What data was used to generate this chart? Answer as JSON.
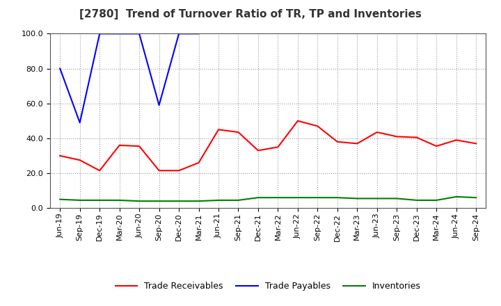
{
  "title": "[2780]  Trend of Turnover Ratio of TR, TP and Inventories",
  "ylim": [
    0.0,
    100.0
  ],
  "yticks": [
    0.0,
    20.0,
    40.0,
    60.0,
    80.0,
    100.0
  ],
  "x_labels": [
    "Jun-19",
    "Sep-19",
    "Dec-19",
    "Mar-20",
    "Jun-20",
    "Sep-20",
    "Dec-20",
    "Mar-21",
    "Jun-21",
    "Sep-21",
    "Dec-21",
    "Mar-22",
    "Jun-22",
    "Sep-22",
    "Dec-22",
    "Mar-23",
    "Jun-23",
    "Sep-23",
    "Dec-23",
    "Mar-24",
    "Jun-24",
    "Sep-24"
  ],
  "trade_receivables": [
    30.0,
    27.5,
    21.5,
    36.0,
    35.5,
    21.5,
    21.5,
    26.0,
    45.0,
    43.5,
    33.0,
    35.0,
    50.0,
    47.0,
    38.0,
    37.0,
    43.5,
    41.0,
    40.5,
    35.5,
    39.0,
    37.0
  ],
  "trade_payables": [
    80.0,
    49.0,
    100.0,
    100.0,
    100.0,
    59.0,
    100.0,
    100.0,
    null,
    null,
    null,
    null,
    null,
    null,
    null,
    null,
    null,
    null,
    null,
    null,
    null,
    null
  ],
  "inventories": [
    5.0,
    4.5,
    4.5,
    4.5,
    4.0,
    4.0,
    4.0,
    4.0,
    4.5,
    4.5,
    6.0,
    6.0,
    6.0,
    6.0,
    6.0,
    5.5,
    5.5,
    5.5,
    4.5,
    4.5,
    6.5,
    6.0
  ],
  "tr_color": "#ff0000",
  "tp_color": "#0000ff",
  "inv_color": "#008000",
  "background_color": "#ffffff",
  "grid_color": "#999999",
  "title_fontsize": 11,
  "legend_fontsize": 9,
  "tick_fontsize": 8
}
